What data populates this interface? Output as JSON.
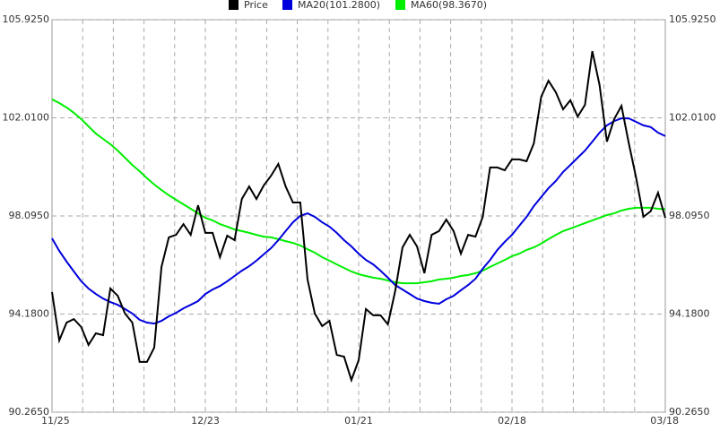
{
  "chart_data": {
    "type": "line",
    "categories": [
      "11/25",
      null,
      null,
      null,
      null,
      null,
      null,
      null,
      null,
      null,
      null,
      null,
      null,
      null,
      null,
      null,
      null,
      null,
      null,
      null,
      null,
      "12/23",
      null,
      null,
      null,
      null,
      null,
      null,
      null,
      null,
      null,
      null,
      null,
      null,
      null,
      null,
      null,
      null,
      null,
      null,
      null,
      null,
      "01/21",
      null,
      null,
      null,
      null,
      null,
      null,
      null,
      null,
      null,
      null,
      null,
      null,
      null,
      null,
      null,
      null,
      null,
      null,
      null,
      null,
      "02/18",
      null,
      null,
      null,
      null,
      null,
      null,
      null,
      null,
      null,
      null,
      null,
      null,
      null,
      null,
      null,
      null,
      null,
      null,
      null,
      null,
      "03/18"
    ],
    "series": [
      {
        "name": "Price",
        "color": "#000000",
        "values": [
          95.06,
          93.13,
          93.84,
          93.98,
          93.66,
          92.95,
          93.41,
          93.34,
          95.2,
          94.91,
          94.2,
          93.84,
          92.27,
          92.27,
          92.84,
          96.06,
          97.24,
          97.34,
          97.77,
          97.34,
          98.52,
          97.42,
          97.42,
          96.45,
          97.31,
          97.13,
          98.77,
          99.27,
          98.77,
          99.31,
          99.7,
          100.17,
          99.27,
          98.63,
          98.63,
          95.56,
          94.2,
          93.7,
          93.91,
          92.55,
          92.48,
          91.55,
          92.34,
          94.38,
          94.13,
          94.13,
          93.77,
          95.09,
          96.84,
          97.34,
          96.88,
          95.81,
          97.34,
          97.49,
          97.95,
          97.49,
          96.59,
          97.34,
          97.27,
          98.06,
          100.03,
          100.03,
          99.92,
          100.35,
          100.35,
          100.28,
          100.99,
          102.85,
          103.49,
          103.03,
          102.35,
          102.71,
          102.06,
          102.53,
          104.67,
          103.31,
          101.06,
          101.96,
          102.49,
          100.99,
          99.63,
          98.06,
          98.28,
          99.02,
          98.02
        ]
      },
      {
        "name": "MA20(101.2800)",
        "color": "#0000dd",
        "values": [
          97.2,
          96.7,
          96.27,
          95.88,
          95.49,
          95.2,
          94.98,
          94.8,
          94.66,
          94.55,
          94.38,
          94.2,
          93.95,
          93.84,
          93.8,
          93.91,
          94.09,
          94.23,
          94.41,
          94.55,
          94.7,
          94.98,
          95.16,
          95.3,
          95.49,
          95.7,
          95.91,
          96.09,
          96.31,
          96.56,
          96.81,
          97.13,
          97.49,
          97.84,
          98.1,
          98.2,
          98.06,
          97.84,
          97.67,
          97.42,
          97.13,
          96.88,
          96.59,
          96.34,
          96.16,
          95.91,
          95.63,
          95.34,
          95.16,
          94.98,
          94.8,
          94.7,
          94.63,
          94.59,
          94.77,
          94.91,
          95.13,
          95.34,
          95.59,
          95.99,
          96.34,
          96.74,
          97.06,
          97.34,
          97.7,
          98.06,
          98.49,
          98.85,
          99.2,
          99.49,
          99.85,
          100.13,
          100.42,
          100.7,
          101.06,
          101.42,
          101.71,
          101.88,
          101.99,
          101.99,
          101.85,
          101.71,
          101.64,
          101.42,
          101.28
        ]
      },
      {
        "name": "MA60(98.3670)",
        "color": "#00ee00",
        "values": [
          102.75,
          102.6,
          102.42,
          102.21,
          101.96,
          101.67,
          101.38,
          101.17,
          100.96,
          100.7,
          100.42,
          100.13,
          99.88,
          99.6,
          99.35,
          99.13,
          98.92,
          98.74,
          98.56,
          98.38,
          98.2,
          98.02,
          97.92,
          97.77,
          97.67,
          97.56,
          97.49,
          97.42,
          97.34,
          97.27,
          97.24,
          97.17,
          97.09,
          97.02,
          96.92,
          96.77,
          96.63,
          96.45,
          96.31,
          96.16,
          96.02,
          95.88,
          95.77,
          95.7,
          95.63,
          95.59,
          95.52,
          95.45,
          95.41,
          95.41,
          95.41,
          95.45,
          95.49,
          95.56,
          95.59,
          95.63,
          95.7,
          95.74,
          95.81,
          95.91,
          96.06,
          96.2,
          96.34,
          96.49,
          96.59,
          96.74,
          96.84,
          96.99,
          97.17,
          97.34,
          97.49,
          97.59,
          97.7,
          97.81,
          97.92,
          98.02,
          98.13,
          98.2,
          98.31,
          98.38,
          98.42,
          98.42,
          98.42,
          98.38,
          98.367
        ]
      }
    ],
    "ylim": [
      90.265,
      105.925
    ],
    "yticks": [
      {
        "value": 90.265,
        "label": "90.2650"
      },
      {
        "value": 94.18,
        "label": "94.1800"
      },
      {
        "value": 98.095,
        "label": "98.0950"
      },
      {
        "value": 102.01,
        "label": "102.0100"
      },
      {
        "value": 105.925,
        "label": "105.9250"
      }
    ],
    "grid": true,
    "legend": "top"
  }
}
